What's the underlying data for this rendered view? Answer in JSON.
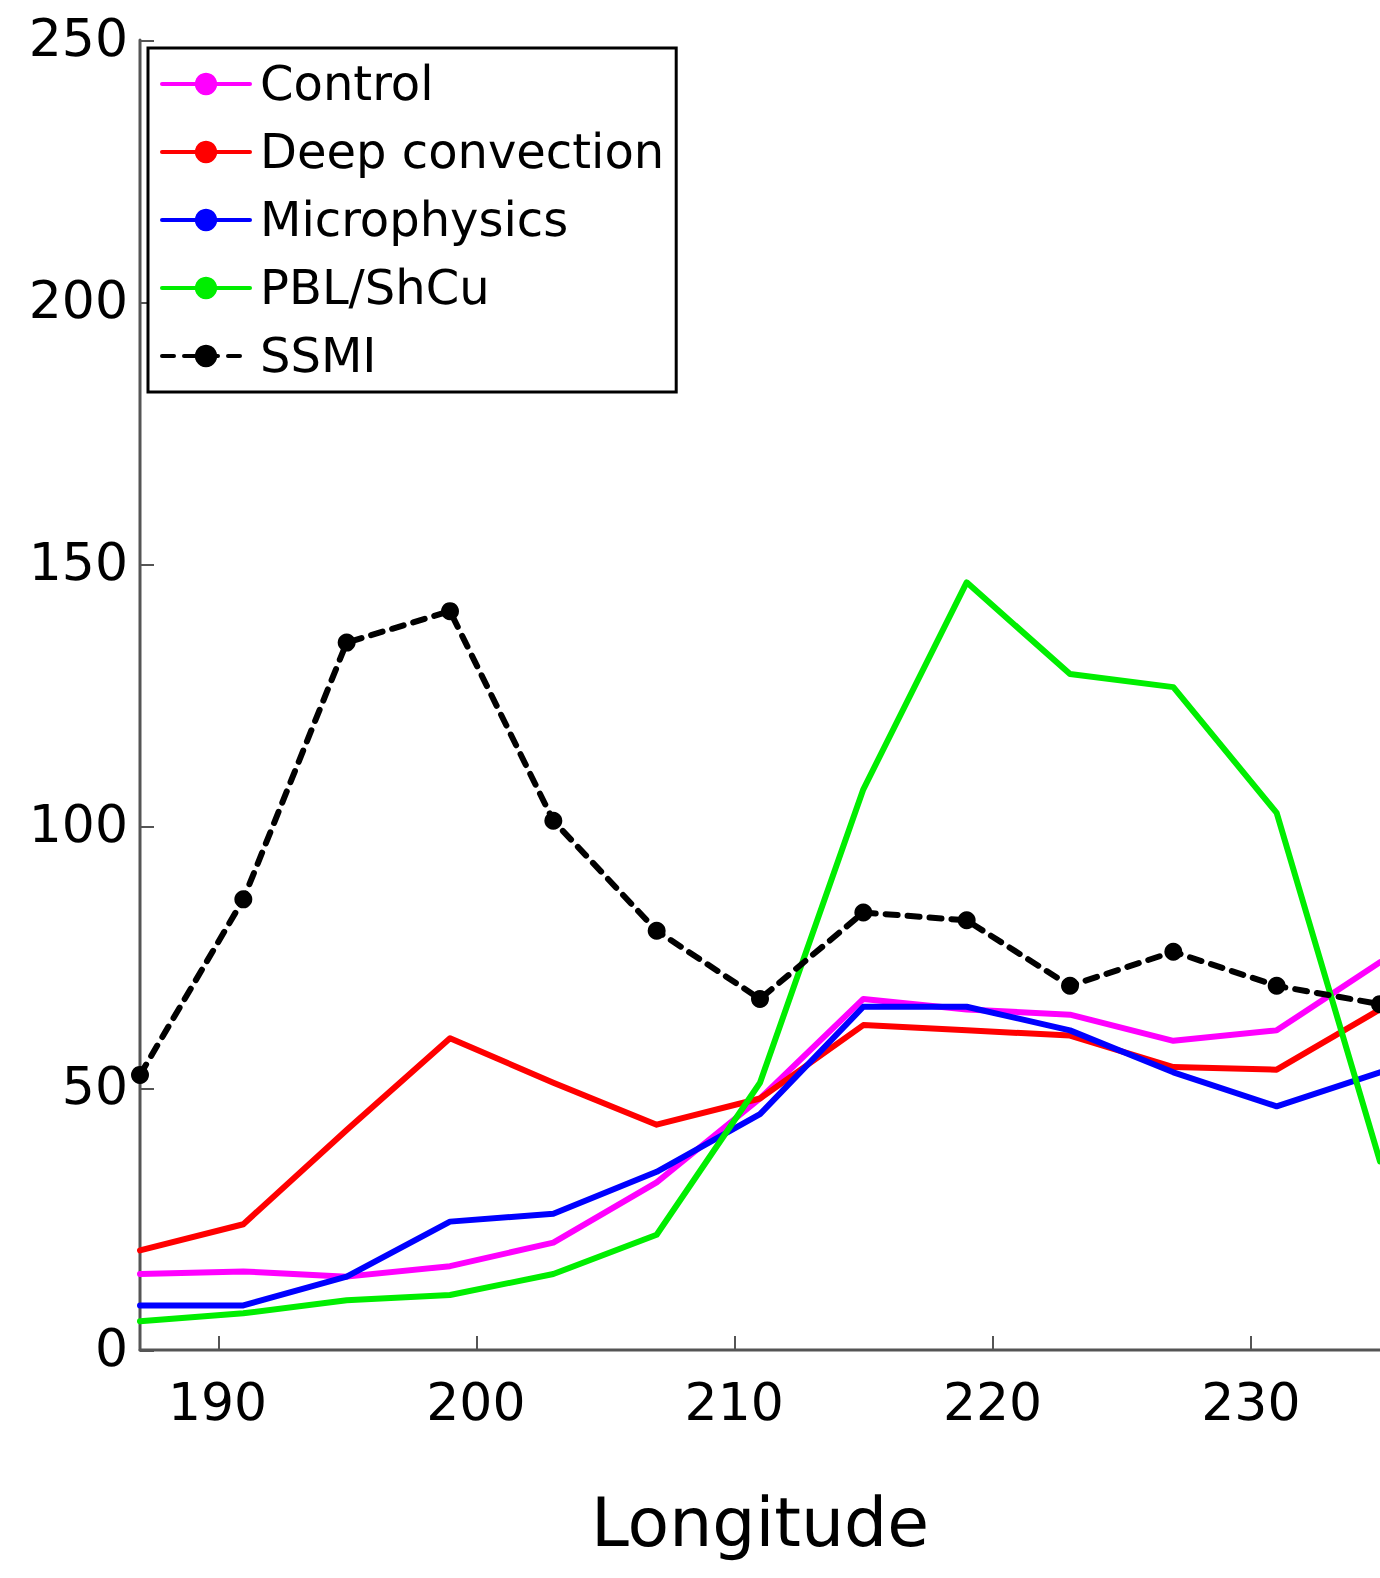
{
  "chart_data": {
    "type": "line",
    "xlabel": "Longitude",
    "x": [
      187,
      191,
      195,
      199,
      203,
      207,
      211,
      215,
      219,
      223,
      227,
      231,
      235
    ],
    "series": [
      {
        "name": "Control",
        "color": "#ff00ff",
        "values": [
          14.5,
          15,
          14,
          16,
          20.5,
          32,
          48,
          67,
          65,
          64,
          59,
          61,
          74
        ]
      },
      {
        "name": "Deep convection",
        "color": "#ff0000",
        "values": [
          19,
          24,
          42,
          59.5,
          51,
          43,
          48,
          62,
          61,
          60,
          54,
          53.5,
          65
        ]
      },
      {
        "name": "Microphysics",
        "color": "#0000ff",
        "values": [
          8.5,
          8.5,
          14,
          24.5,
          26,
          34,
          45,
          65.5,
          65.5,
          61,
          53,
          46.5,
          53
        ]
      },
      {
        "name": "PBL/ShCu",
        "color": "#00ee00",
        "values": [
          5.5,
          7,
          9.5,
          10.5,
          14.5,
          22,
          51,
          107,
          146.5,
          129,
          126.5,
          102.5,
          36
        ]
      },
      {
        "name": "SSMI",
        "color": "#000000",
        "marker": "circle",
        "line_style": "dashed",
        "values": [
          52.5,
          86,
          135,
          141,
          101,
          80,
          67,
          83.5,
          82,
          69.5,
          76,
          69.5,
          66
        ]
      }
    ],
    "xlim": [
      187,
      235
    ],
    "xticks": [
      190,
      200,
      210,
      220,
      230
    ],
    "ylim": [
      0,
      250
    ],
    "yticks": [
      0,
      50,
      100,
      150,
      200,
      250
    ],
    "grid": false,
    "legend": "top left",
    "marker": "none",
    "line_style": "solid"
  }
}
